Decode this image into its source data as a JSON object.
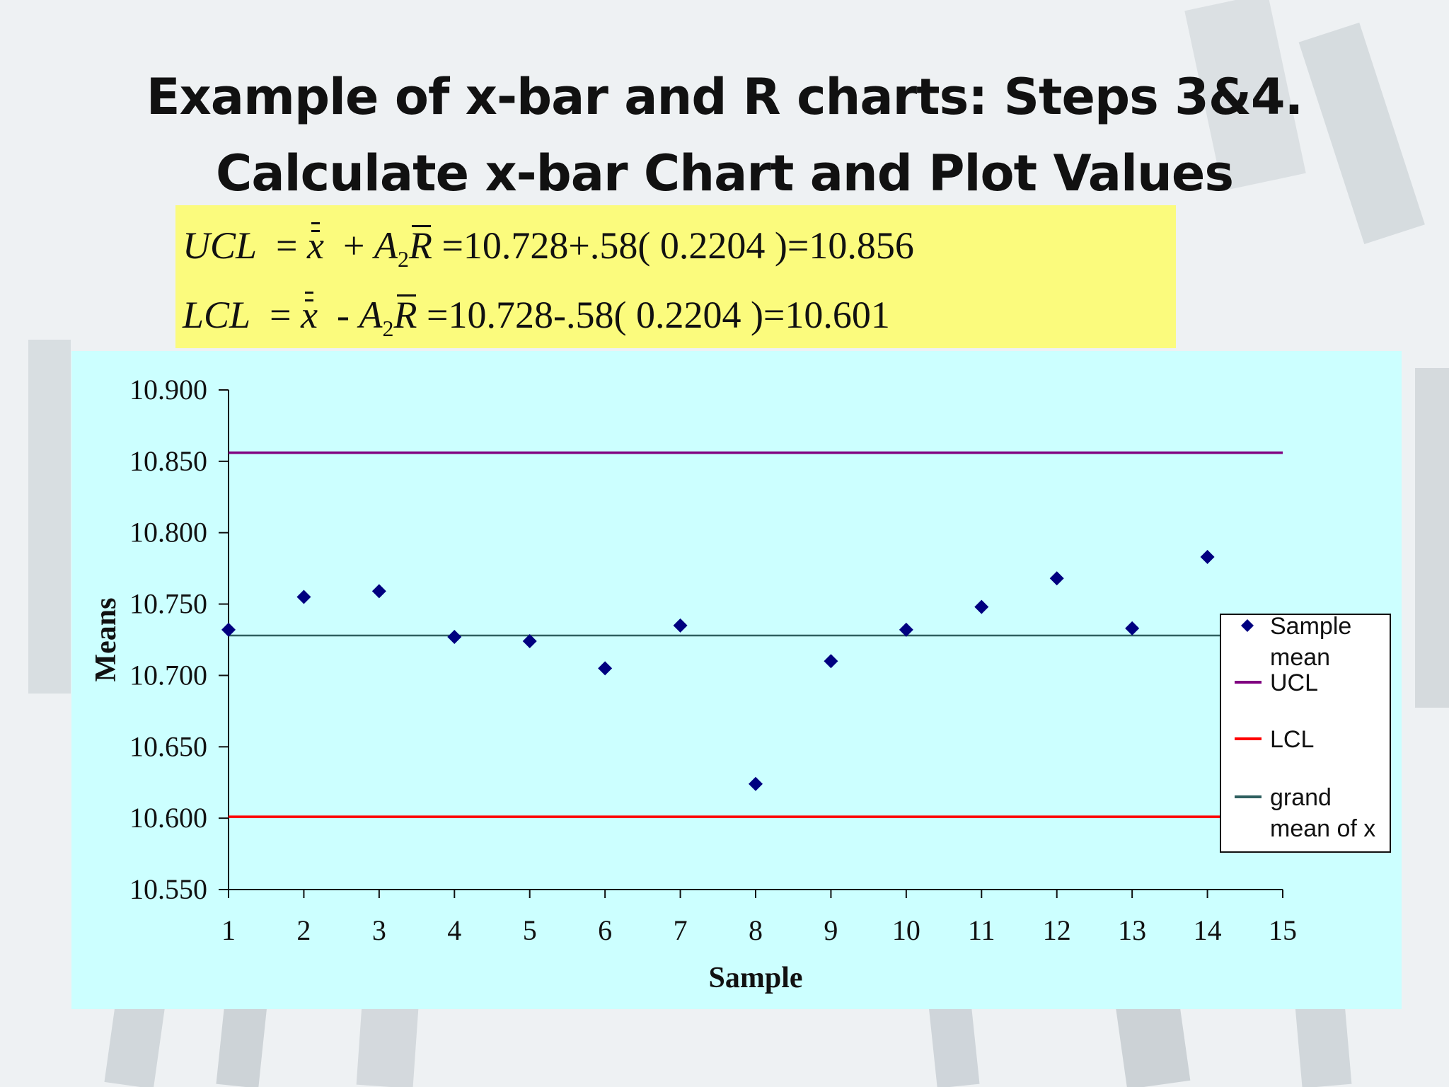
{
  "slide": {
    "title_line1": "Example of x-bar and R charts: Steps 3&4.",
    "title_line2": "Calculate x-bar Chart and Plot Values"
  },
  "formulas": {
    "ucl": {
      "label": "UCL",
      "op": "+",
      "grand_mean": "10.728",
      "a2": ".58",
      "rbar": "0.2204",
      "result": "10.856",
      "A": "A",
      "sub": "2",
      "R": "R",
      "x": "x"
    },
    "lcl": {
      "label": "LCL",
      "op": "-",
      "grand_mean": "10.728",
      "a2": ".58",
      "rbar": "0.2204",
      "result": "10.601",
      "A": "A",
      "sub": "2",
      "R": "R",
      "x": "x"
    }
  },
  "chart_data": {
    "type": "scatter",
    "xlabel": "Sample",
    "ylabel": "Means",
    "xlim": [
      1,
      15
    ],
    "ylim": [
      10.55,
      10.9
    ],
    "x_ticks": [
      1,
      2,
      3,
      4,
      5,
      6,
      7,
      8,
      9,
      10,
      11,
      12,
      13,
      14,
      15
    ],
    "y_ticks": [
      "10.550",
      "10.600",
      "10.650",
      "10.700",
      "10.750",
      "10.800",
      "10.850",
      "10.900"
    ],
    "grid": false,
    "legend_position": "right",
    "series": [
      {
        "name": "Sample mean",
        "kind": "points",
        "color": "#000080",
        "marker": "diamond",
        "x": [
          1,
          2,
          3,
          4,
          5,
          6,
          7,
          8,
          9,
          10,
          11,
          12,
          13,
          14
        ],
        "y": [
          10.732,
          10.755,
          10.759,
          10.727,
          10.724,
          10.705,
          10.735,
          10.624,
          10.71,
          10.732,
          10.748,
          10.768,
          10.733,
          10.783
        ]
      },
      {
        "name": "UCL",
        "kind": "line",
        "color": "#800080",
        "x": [
          1,
          15
        ],
        "y": [
          10.856,
          10.856
        ]
      },
      {
        "name": "LCL",
        "kind": "line",
        "color": "#ff0000",
        "x": [
          1,
          15
        ],
        "y": [
          10.601,
          10.601
        ]
      },
      {
        "name": "grand mean of x",
        "kind": "line",
        "color": "#2f5f5f",
        "x": [
          1,
          15
        ],
        "y": [
          10.728,
          10.728
        ]
      }
    ],
    "legend": [
      {
        "lines": [
          "Sample",
          "mean"
        ],
        "color": "#000080",
        "kind": "marker"
      },
      {
        "lines": [
          "UCL"
        ],
        "color": "#800080",
        "kind": "line"
      },
      {
        "lines": [
          "LCL"
        ],
        "color": "#ff0000",
        "kind": "line"
      },
      {
        "lines": [
          "grand",
          "mean of x"
        ],
        "color": "#2f5f5f",
        "kind": "line"
      }
    ]
  }
}
